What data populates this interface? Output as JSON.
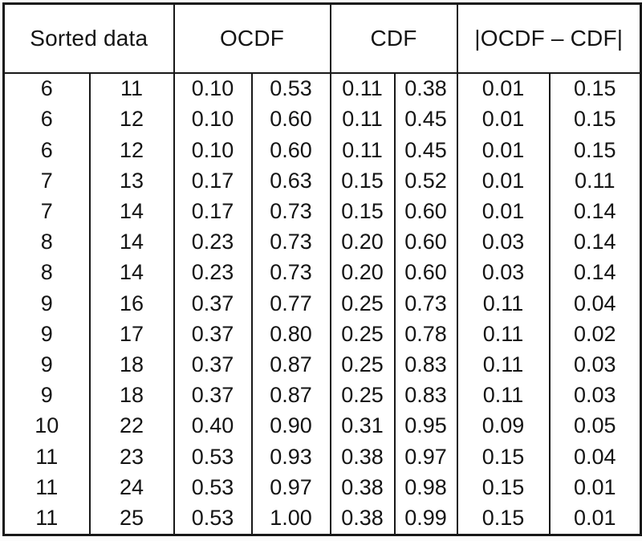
{
  "table": {
    "header_groups": [
      {
        "label": "Sorted data"
      },
      {
        "label": "OCDF"
      },
      {
        "label": "CDF"
      },
      {
        "label": "|OCDF – CDF|"
      }
    ],
    "rows": [
      [
        "6",
        "11",
        "0.10",
        "0.53",
        "0.11",
        "0.38",
        "0.01",
        "0.15"
      ],
      [
        "6",
        "12",
        "0.10",
        "0.60",
        "0.11",
        "0.45",
        "0.01",
        "0.15"
      ],
      [
        "6",
        "12",
        "0.10",
        "0.60",
        "0.11",
        "0.45",
        "0.01",
        "0.15"
      ],
      [
        "7",
        "13",
        "0.17",
        "0.63",
        "0.15",
        "0.52",
        "0.01",
        "0.11"
      ],
      [
        "7",
        "14",
        "0.17",
        "0.73",
        "0.15",
        "0.60",
        "0.01",
        "0.14"
      ],
      [
        "8",
        "14",
        "0.23",
        "0.73",
        "0.20",
        "0.60",
        "0.03",
        "0.14"
      ],
      [
        "8",
        "14",
        "0.23",
        "0.73",
        "0.20",
        "0.60",
        "0.03",
        "0.14"
      ],
      [
        "9",
        "16",
        "0.37",
        "0.77",
        "0.25",
        "0.73",
        "0.11",
        "0.04"
      ],
      [
        "9",
        "17",
        "0.37",
        "0.80",
        "0.25",
        "0.78",
        "0.11",
        "0.02"
      ],
      [
        "9",
        "18",
        "0.37",
        "0.87",
        "0.25",
        "0.83",
        "0.11",
        "0.03"
      ],
      [
        "9",
        "18",
        "0.37",
        "0.87",
        "0.25",
        "0.83",
        "0.11",
        "0.03"
      ],
      [
        "10",
        "22",
        "0.40",
        "0.90",
        "0.31",
        "0.95",
        "0.09",
        "0.05"
      ],
      [
        "11",
        "23",
        "0.53",
        "0.93",
        "0.38",
        "0.97",
        "0.15",
        "0.04"
      ],
      [
        "11",
        "24",
        "0.53",
        "0.97",
        "0.38",
        "0.98",
        "0.15",
        "0.01"
      ],
      [
        "11",
        "25",
        "0.53",
        "1.00",
        "0.38",
        "0.99",
        "0.15",
        "0.01"
      ]
    ],
    "colors": {
      "border": "#181818",
      "text": "#141414",
      "cell_background": "#ffffff"
    }
  }
}
